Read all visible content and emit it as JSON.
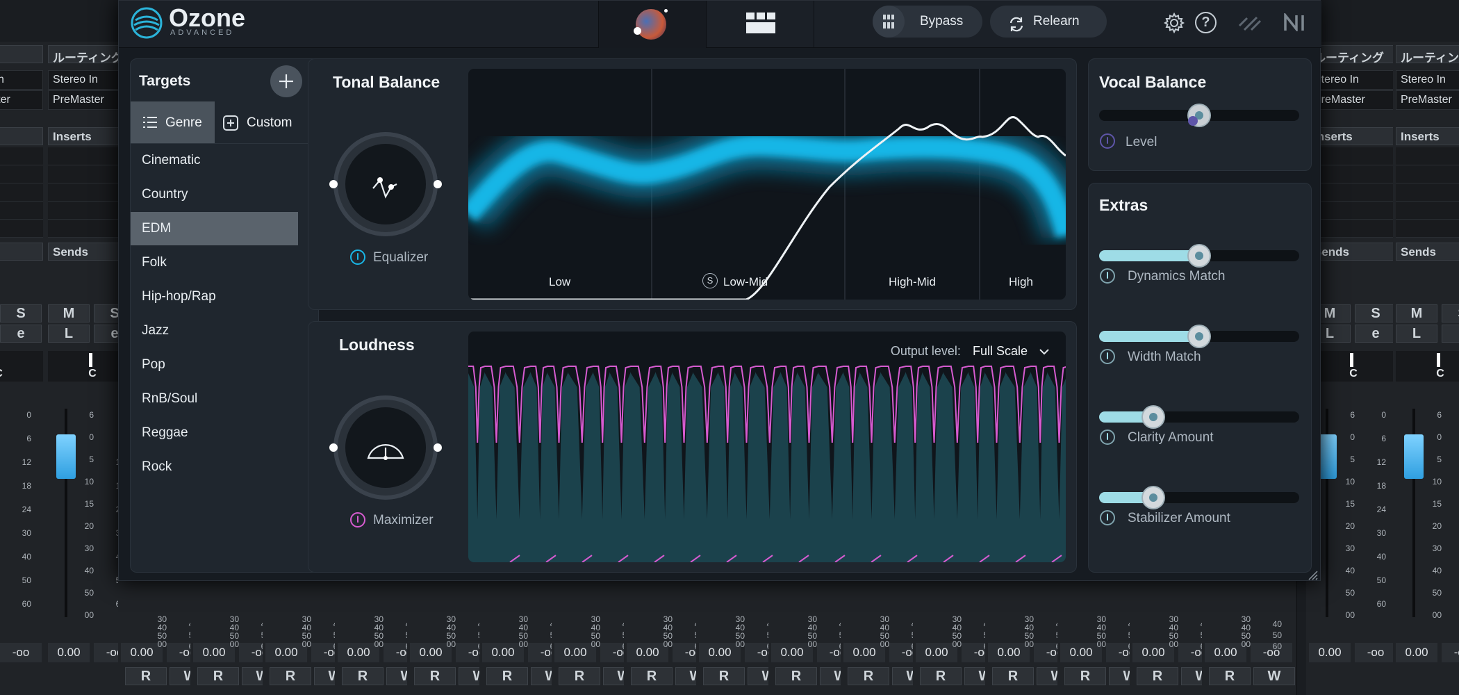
{
  "app": {
    "title": "Ozone",
    "subtitle": "ADVANCED"
  },
  "toolbar": {
    "bypass_label": "Bypass",
    "relearn_label": "Relearn"
  },
  "targets": {
    "title": "Targets",
    "tabs": [
      {
        "label": "Genre",
        "active": true
      },
      {
        "label": "Custom",
        "active": false
      }
    ],
    "genres": [
      "Cinematic",
      "Country",
      "EDM",
      "Folk",
      "Hip-hop/Rap",
      "Jazz",
      "Pop",
      "RnB/Soul",
      "Reggae",
      "Rock"
    ],
    "selected": "EDM"
  },
  "tonal_balance": {
    "title": "Tonal Balance",
    "module_label": "Equalizer",
    "bands": [
      "Low",
      "Low-Mid",
      "High-Mid",
      "High"
    ],
    "solo_label": "S"
  },
  "loudness": {
    "title": "Loudness",
    "module_label": "Maximizer",
    "output_level_label": "Output level:",
    "output_level_value": "Full Scale"
  },
  "vocal_balance": {
    "title": "Vocal Balance",
    "level_label": "Level",
    "level_value": 0.5
  },
  "extras": {
    "title": "Extras",
    "items": [
      {
        "label": "Dynamics Match",
        "value": 0.5
      },
      {
        "label": "Width Match",
        "value": 0.5
      },
      {
        "label": "Clarity Amount",
        "value": 0.27
      },
      {
        "label": "Stabilizer Amount",
        "value": 0.27
      }
    ]
  },
  "colors": {
    "accent": "#19b6e6",
    "loudness_pink": "#d65bd0",
    "slider_fill": "#9edce6"
  },
  "mixer": {
    "header_left": "ング",
    "header_right": "ルーティング",
    "input": "Stereo In",
    "output": "PreMaster",
    "inserts": "Inserts",
    "sends": "Sends",
    "mute": "M",
    "solo": "S",
    "listen": "L",
    "edit": "e",
    "read": "R",
    "write": "W",
    "pan": "C",
    "volume": "0.00",
    "peak": "-oo",
    "scale_left": [
      "6",
      "0",
      "5",
      "10",
      "15",
      "20",
      "30",
      "40",
      "50",
      "00"
    ],
    "scale_right": [
      "0",
      "6",
      "12",
      "18",
      "24",
      "30",
      "40",
      "50",
      "60"
    ]
  }
}
